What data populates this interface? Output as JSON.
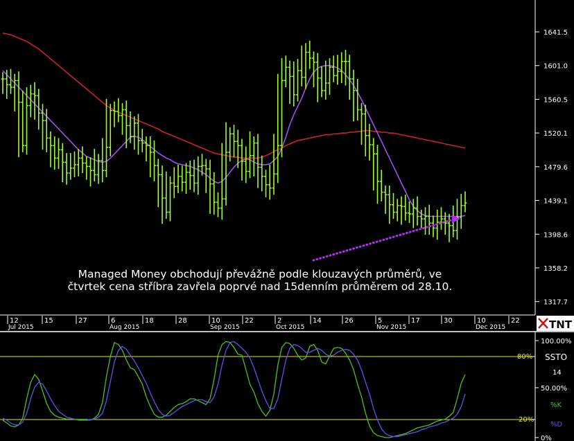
{
  "price_panel": {
    "annotation_lines": [
      "Managed Money obchodují převážně podle klouzavých průměrů, ve",
      "čtvrtek cena stříbra zavřela poprvé nad 15denním průměrem od 28.10."
    ],
    "y_ticks": [
      "1641.5",
      "1601.0",
      "1560.5",
      "1520.1",
      "1479.6",
      "1439.1",
      "1398.6",
      "1358.2",
      "1317.7"
    ],
    "x_ticks": [
      {
        "day": "12",
        "month": "Jul 2015"
      },
      {
        "day": "15",
        "month": ""
      },
      {
        "day": "27",
        "month": ""
      },
      {
        "day": "6",
        "month": "Aug 2015"
      },
      {
        "day": "18",
        "month": ""
      },
      {
        "day": "28",
        "month": ""
      },
      {
        "day": "10",
        "month": "Sep 2015"
      },
      {
        "day": "22",
        "month": ""
      },
      {
        "day": "2",
        "month": "Oct 2015"
      },
      {
        "day": "14",
        "month": ""
      },
      {
        "day": "26",
        "month": ""
      },
      {
        "day": "5",
        "month": "Nov 2015"
      },
      {
        "day": "17",
        "month": ""
      },
      {
        "day": "30",
        "month": ""
      },
      {
        "day": "10",
        "month": "Dec 2015"
      },
      {
        "day": "22",
        "month": ""
      }
    ],
    "logo_text": "TNT"
  },
  "stoch_panel": {
    "y_ticks": [
      "100.00%",
      "80%",
      "50.00%",
      "20%",
      "0%"
    ],
    "legend": {
      "title": "SSTO",
      "period": "14",
      "k": "%K",
      "d": "%D"
    }
  },
  "chart_data": [
    {
      "type": "ohlc",
      "ylim": [
        1317.7,
        1662
      ],
      "bar_color": "#9cff2a",
      "series": [
        {
          "name": "price",
          "closes": [
            1585,
            1578,
            1575,
            1583,
            1557,
            1505,
            1553,
            1567,
            1565,
            1544,
            1535,
            1514,
            1505,
            1490,
            1500,
            1485,
            1472,
            1478,
            1482,
            1490,
            1484,
            1480,
            1475,
            1470,
            1487,
            1475,
            1503,
            1547,
            1546,
            1541,
            1548,
            1529,
            1516,
            1532,
            1511,
            1508,
            1505,
            1497,
            1481,
            1470,
            1442,
            1425,
            1460,
            1456,
            1468,
            1461,
            1473,
            1469,
            1460,
            1480,
            1481,
            1477,
            1459,
            1437,
            1430,
            1441,
            1497,
            1519,
            1510,
            1505,
            1486,
            1474,
            1493,
            1508,
            1479,
            1468,
            1458,
            1454,
            1471,
            1505,
            1583,
            1599,
            1588,
            1566,
            1595,
            1587,
            1617,
            1610,
            1605,
            1586,
            1571,
            1580,
            1599,
            1589,
            1594,
            1606,
            1606,
            1585,
            1571,
            1548,
            1543,
            1517,
            1506,
            1495,
            1462,
            1449,
            1446,
            1434,
            1425,
            1433,
            1432,
            1424,
            1423,
            1430,
            1420,
            1417,
            1420,
            1412,
            1406,
            1413,
            1417,
            1412,
            1409,
            1403,
            1419,
            1433,
            1436
          ]
        }
      ]
    },
    {
      "type": "line",
      "series": [
        {
          "name": "15-day MA",
          "color": "#a050f0",
          "values": [
            1595,
            1590,
            1585,
            1580,
            1575,
            1570,
            1565,
            1560,
            1555,
            1550,
            1545,
            1540,
            1535,
            1530,
            1525,
            1520,
            1515,
            1510,
            1505,
            1500,
            1496,
            1492,
            1490,
            1488,
            1486,
            1485,
            1486,
            1490,
            1495,
            1500,
            1505,
            1510,
            1515,
            1516,
            1515,
            1512,
            1508,
            1504,
            1500,
            1496,
            1493,
            1490,
            1488,
            1485,
            1483,
            1482,
            1481,
            1480,
            1478,
            1476,
            1473,
            1470,
            1466,
            1462,
            1460,
            1462,
            1467,
            1473,
            1479,
            1484,
            1487,
            1489,
            1488,
            1485,
            1483,
            1482,
            1482,
            1483,
            1487,
            1492,
            1502,
            1515,
            1530,
            1542,
            1552,
            1562,
            1574,
            1585,
            1593,
            1598,
            1600,
            1601,
            1601,
            1600,
            1598,
            1595,
            1590,
            1584,
            1577,
            1569,
            1560,
            1550,
            1540,
            1530,
            1520,
            1510,
            1500,
            1490,
            1480,
            1470,
            1460,
            1450,
            1440,
            1432,
            1427,
            1423,
            1421,
            1420,
            1420,
            1420,
            1420,
            1420,
            1420,
            1420,
            1420,
            1420,
            1421
          ]
        },
        {
          "name": "50-day MA",
          "color": "#cc2222",
          "values": [
            1640,
            1639,
            1638,
            1636,
            1634,
            1632,
            1630,
            1627,
            1624,
            1621,
            1617,
            1613,
            1609,
            1605,
            1601,
            1597,
            1593,
            1589,
            1585,
            1581,
            1577,
            1573,
            1569,
            1565,
            1561,
            1557,
            1553,
            1550,
            1547,
            1545,
            1543,
            1541,
            1539,
            1537,
            1535,
            1533,
            1531,
            1529,
            1527,
            1525,
            1522,
            1520,
            1518,
            1516,
            1514,
            1512,
            1510,
            1508,
            1506,
            1504,
            1502,
            1500,
            1498,
            1496,
            1495,
            1494,
            1493,
            1492,
            1491,
            1491,
            1490,
            1490,
            1490,
            1490,
            1490,
            1491,
            1493,
            1495,
            1498,
            1500,
            1502,
            1505,
            1507,
            1509,
            1511,
            1512,
            1513,
            1514,
            1515,
            1516,
            1517,
            1518,
            1518,
            1519,
            1519,
            1520,
            1520,
            1521,
            1521,
            1522,
            1522,
            1523,
            1523,
            1522,
            1522,
            1521,
            1521,
            1520,
            1520,
            1519,
            1518,
            1517,
            1516,
            1515,
            1514,
            1513,
            1512,
            1511,
            1510,
            1509,
            1508,
            1507,
            1506,
            1505,
            1504,
            1503,
            1502
          ]
        }
      ]
    },
    {
      "type": "line",
      "ylim": [
        0,
        100
      ],
      "series": [
        {
          "name": "%K",
          "color": "#4cc41c",
          "values": [
            18,
            15,
            12,
            11,
            13,
            20,
            40,
            57,
            65,
            60,
            48,
            35,
            27,
            23,
            21,
            20,
            19,
            19,
            19,
            18,
            18,
            18,
            18,
            20,
            24,
            36,
            63,
            84,
            98,
            96,
            90,
            80,
            72,
            70,
            63,
            55,
            42,
            32,
            24,
            21,
            21,
            23,
            27,
            31,
            34,
            35,
            37,
            40,
            40,
            38,
            36,
            34,
            40,
            60,
            85,
            96,
            99,
            98,
            93,
            86,
            85,
            70,
            55,
            47,
            35,
            27,
            22,
            28,
            45,
            75,
            93,
            98,
            97,
            92,
            85,
            80,
            82,
            94,
            96,
            90,
            78,
            76,
            84,
            92,
            93,
            92,
            87,
            80,
            70,
            55,
            42,
            25,
            12,
            5,
            2,
            1,
            0,
            0,
            1,
            2,
            3,
            4,
            6,
            8,
            10,
            11,
            12,
            13,
            15,
            17,
            18,
            19,
            22,
            26,
            40,
            56,
            65
          ]
        },
        {
          "name": "%D",
          "color": "#5a55ee",
          "values": [
            20,
            18,
            15,
            13,
            13,
            16,
            25,
            40,
            52,
            57,
            55,
            48,
            40,
            33,
            27,
            24,
            21,
            20,
            19,
            19,
            19,
            19,
            18,
            19,
            21,
            25,
            38,
            58,
            78,
            90,
            94,
            91,
            85,
            79,
            72,
            64,
            56,
            46,
            37,
            29,
            24,
            22,
            23,
            26,
            29,
            32,
            34,
            36,
            38,
            39,
            39,
            37,
            36,
            42,
            55,
            75,
            90,
            98,
            99,
            96,
            92,
            88,
            82,
            72,
            60,
            48,
            38,
            30,
            30,
            40,
            60,
            80,
            92,
            96,
            95,
            92,
            88,
            88,
            90,
            92,
            90,
            86,
            84,
            85,
            88,
            90,
            91,
            90,
            86,
            80,
            70,
            57,
            45,
            30,
            18,
            9,
            4,
            2,
            1,
            1,
            2,
            3,
            4,
            5,
            6,
            8,
            9,
            11,
            12,
            13,
            15,
            16,
            18,
            20,
            24,
            32,
            45
          ]
        }
      ]
    }
  ]
}
